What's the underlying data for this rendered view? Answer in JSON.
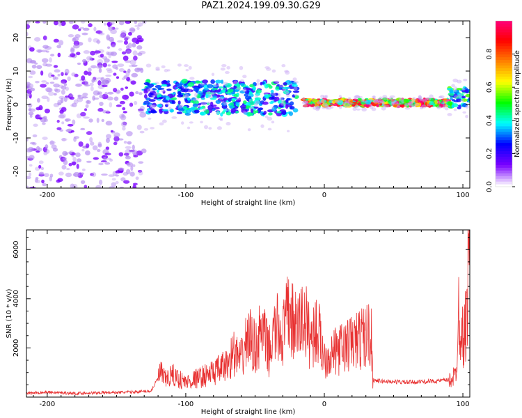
{
  "title": "PAZ1.2024.199.09.30.G29",
  "chart_data": [
    {
      "type": "heatmap",
      "xlabel": "Height of straight line (km)",
      "ylabel": "Frequency (Hz)",
      "xlim": [
        -215,
        105
      ],
      "ylim": [
        -25,
        25
      ],
      "xticks": [
        -200,
        -100,
        0,
        100
      ],
      "yticks": [
        -20,
        -10,
        0,
        10,
        20
      ],
      "colorbar": {
        "label": "Normalized spectral amplitude",
        "range": [
          0,
          1
        ],
        "ticks": [
          0.0,
          0.2,
          0.4,
          0.6,
          0.8
        ],
        "colormap": [
          "#ffffff",
          "#7a00ff",
          "#0000ff",
          "#00ffff",
          "#00ff00",
          "#ffff00",
          "#ff8000",
          "#ff0000",
          "#ff0080"
        ]
      },
      "ridge": {
        "segments": [
          {
            "x": [
              -215,
              -130
            ],
            "y_spread": 25,
            "amp": 0.15,
            "desc": "noise"
          },
          {
            "x": [
              -130,
              -20
            ],
            "center_y": 2,
            "spread": 5,
            "amp": 0.35
          },
          {
            "x": [
              -15,
              90
            ],
            "center_y": 0.5,
            "spread": 1,
            "amp": 0.9
          },
          {
            "x": [
              90,
              105
            ],
            "center_y": 2,
            "spread": 3,
            "amp": 0.45
          }
        ]
      }
    },
    {
      "type": "line",
      "xlabel": "Height of straight line (km)",
      "ylabel": "SNR (10 * v/v)",
      "xlim": [
        -215,
        105
      ],
      "ylim": [
        0,
        6800
      ],
      "xticks": [
        -200,
        -100,
        0,
        100
      ],
      "yticks": [
        2000,
        4000,
        6000
      ],
      "color": "#e83232",
      "series": [
        {
          "x": [
            -215,
            -200,
            -180,
            -160,
            -140,
            -125,
            -118,
            -115,
            -110,
            -100,
            -90,
            -80,
            -70,
            -66,
            -60,
            -55,
            -50,
            -45,
            -40,
            -35,
            -30,
            -25,
            -24,
            -20,
            -15,
            -10,
            -5,
            0,
            10,
            20,
            30,
            34,
            35,
            40,
            60,
            80,
            90,
            95,
            97,
            100,
            103,
            104,
            105
          ],
          "y": [
            150,
            200,
            150,
            180,
            200,
            250,
            1000,
            700,
            900,
            600,
            800,
            1000,
            1300,
            1800,
            1500,
            2500,
            2000,
            2700,
            1800,
            2800,
            2500,
            3600,
            3200,
            2700,
            3300,
            2400,
            2800,
            1600,
            1900,
            2200,
            2500,
            2550,
            700,
            650,
            600,
            650,
            700,
            900,
            3600,
            2400,
            3200,
            6700,
            6700
          ]
        }
      ]
    }
  ]
}
